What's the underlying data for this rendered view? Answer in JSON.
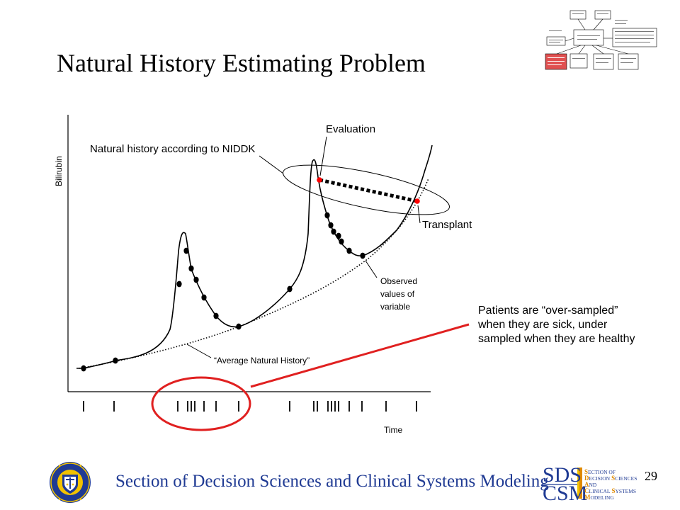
{
  "slide": {
    "title": "Natural History Estimating Problem",
    "footer": "Section of Decision Sciences and Clinical Systems Modeling",
    "page_number": "29"
  },
  "diagram": {
    "y_axis_label": "Bilirubin",
    "x_axis_label": "Time",
    "labels": {
      "evaluation": "Evaluation",
      "natural_history": "Natural history according to NIDDK",
      "transplant": "Transplant",
      "observed_values": [
        "Observed",
        "values of",
        "variable"
      ],
      "average_natural_history": "“Average Natural History”",
      "oversampled": [
        "Patients are “over-sampled”",
        "when they are sick, under",
        "sampled when they are healthy"
      ]
    },
    "colors": {
      "line": "#000000",
      "accent_red": "#e02020",
      "marker_red": "#ff0000"
    }
  },
  "logos": {
    "sds": "SDS",
    "csm": "CSM",
    "sds_words": [
      "ECTION OF",
      "ECISION",
      "ND",
      "LINICAL",
      "ODELING"
    ],
    "sds_words_b": [
      "",
      "CIENCES",
      "",
      "YSTEMS",
      ""
    ],
    "sds_initials": [
      "S",
      "D",
      "A",
      "C",
      "M"
    ],
    "sds_initials_b": [
      "",
      "S",
      "",
      "S",
      ""
    ],
    "seal_icon": "university-seal-icon"
  }
}
